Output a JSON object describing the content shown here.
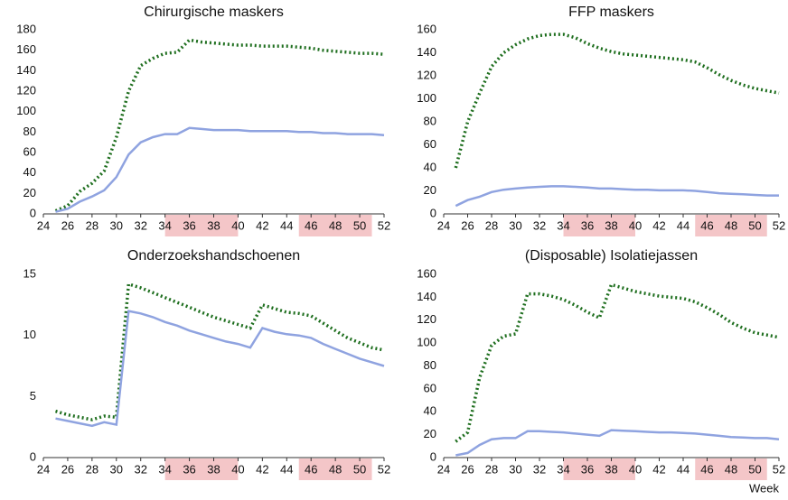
{
  "xlabel": "Week",
  "chart_data": [
    {
      "type": "line",
      "title": "Chirurgische maskers",
      "x": [
        25,
        26,
        27,
        28,
        29,
        30,
        31,
        32,
        33,
        34,
        35,
        36,
        37,
        38,
        39,
        40,
        41,
        42,
        43,
        44,
        45,
        46,
        47,
        48,
        49,
        50,
        51,
        52
      ],
      "xlim": [
        24,
        52
      ],
      "xticks": [
        24,
        26,
        28,
        30,
        32,
        34,
        36,
        38,
        40,
        42,
        44,
        46,
        48,
        50,
        52
      ],
      "ylim": [
        0,
        180
      ],
      "yticks": [
        0,
        20,
        40,
        60,
        80,
        100,
        120,
        140,
        160,
        180
      ],
      "shaded": [
        [
          34,
          40
        ],
        [
          45,
          51
        ]
      ],
      "shade_color": "#f4c6c8",
      "series": [
        {
          "color": "#1e6e1e",
          "style": "dotted",
          "values": [
            3,
            8,
            22,
            30,
            42,
            75,
            120,
            145,
            152,
            157,
            158,
            170,
            168,
            167,
            166,
            165,
            165,
            164,
            164,
            164,
            163,
            162,
            160,
            159,
            158,
            157,
            157,
            156
          ]
        },
        {
          "color": "#8fa3e0",
          "style": "solid",
          "values": [
            2,
            5,
            12,
            17,
            23,
            36,
            58,
            70,
            75,
            78,
            78,
            84,
            83,
            82,
            82,
            82,
            81,
            81,
            81,
            81,
            80,
            80,
            79,
            79,
            78,
            78,
            78,
            77
          ]
        }
      ]
    },
    {
      "type": "line",
      "title": "FFP maskers",
      "x": [
        25,
        26,
        27,
        28,
        29,
        30,
        31,
        32,
        33,
        34,
        35,
        36,
        37,
        38,
        39,
        40,
        41,
        42,
        43,
        44,
        45,
        46,
        47,
        48,
        49,
        50,
        51,
        52
      ],
      "xlim": [
        24,
        52
      ],
      "xticks": [
        24,
        26,
        28,
        30,
        32,
        34,
        36,
        38,
        40,
        42,
        44,
        46,
        48,
        50,
        52
      ],
      "ylim": [
        0,
        160
      ],
      "yticks": [
        0,
        20,
        40,
        60,
        80,
        100,
        120,
        140,
        160
      ],
      "shaded": [
        [
          34,
          40
        ],
        [
          45,
          51
        ]
      ],
      "shade_color": "#f4c6c8",
      "series": [
        {
          "color": "#1e6e1e",
          "style": "dotted",
          "values": [
            40,
            80,
            105,
            128,
            140,
            147,
            152,
            155,
            156,
            156,
            153,
            148,
            144,
            141,
            139,
            138,
            137,
            136,
            135,
            134,
            132,
            127,
            121,
            116,
            112,
            109,
            107,
            105
          ]
        },
        {
          "color": "#8fa3e0",
          "style": "solid",
          "values": [
            7,
            12,
            15,
            19,
            21,
            22,
            23,
            23.5,
            24,
            24,
            23.5,
            23,
            22,
            22,
            21.5,
            21,
            21,
            20.5,
            20.5,
            20.5,
            20,
            19,
            18,
            17.5,
            17,
            16.5,
            16,
            16
          ]
        }
      ]
    },
    {
      "type": "line",
      "title": "Onderzoekshandschoenen",
      "x": [
        25,
        26,
        27,
        28,
        29,
        30,
        31,
        32,
        33,
        34,
        35,
        36,
        37,
        38,
        39,
        40,
        41,
        42,
        43,
        44,
        45,
        46,
        47,
        48,
        49,
        50,
        51,
        52
      ],
      "xlim": [
        24,
        52
      ],
      "xticks": [
        24,
        26,
        28,
        30,
        32,
        34,
        36,
        38,
        40,
        42,
        44,
        46,
        48,
        50,
        52
      ],
      "ylim": [
        0,
        15
      ],
      "yticks": [
        0,
        5,
        10,
        15
      ],
      "shaded": [
        [
          34,
          40
        ],
        [
          45,
          51
        ]
      ],
      "shade_color": "#f4c6c8",
      "series": [
        {
          "color": "#1e6e1e",
          "style": "dotted",
          "values": [
            3.8,
            3.5,
            3.3,
            3.1,
            3.4,
            3.3,
            14.2,
            13.9,
            13.5,
            13.1,
            12.7,
            12.3,
            11.9,
            11.5,
            11.2,
            10.9,
            10.6,
            12.5,
            12.2,
            11.9,
            11.8,
            11.6,
            11.0,
            10.4,
            9.8,
            9.4,
            9.0,
            8.8
          ]
        },
        {
          "color": "#8fa3e0",
          "style": "solid",
          "values": [
            3.2,
            3.0,
            2.8,
            2.6,
            2.9,
            2.7,
            12.0,
            11.8,
            11.5,
            11.1,
            10.8,
            10.4,
            10.1,
            9.8,
            9.5,
            9.3,
            9.0,
            10.6,
            10.3,
            10.1,
            10.0,
            9.8,
            9.3,
            8.9,
            8.5,
            8.1,
            7.8,
            7.5
          ]
        }
      ]
    },
    {
      "type": "line",
      "title": "(Disposable) Isolatiejassen",
      "x": [
        25,
        26,
        27,
        28,
        29,
        30,
        31,
        32,
        33,
        34,
        35,
        36,
        37,
        38,
        39,
        40,
        41,
        42,
        43,
        44,
        45,
        46,
        47,
        48,
        49,
        50,
        51,
        52
      ],
      "xlim": [
        24,
        52
      ],
      "xticks": [
        24,
        26,
        28,
        30,
        32,
        34,
        36,
        38,
        40,
        42,
        44,
        46,
        48,
        50,
        52
      ],
      "ylim": [
        0,
        160
      ],
      "yticks": [
        0,
        20,
        40,
        60,
        80,
        100,
        120,
        140,
        160
      ],
      "shaded": [
        [
          34,
          40
        ],
        [
          45,
          51
        ]
      ],
      "shade_color": "#f4c6c8",
      "series": [
        {
          "color": "#1e6e1e",
          "style": "dotted",
          "values": [
            14,
            22,
            70,
            98,
            106,
            108,
            143,
            143,
            141,
            138,
            133,
            127,
            122,
            151,
            148,
            145,
            143,
            141,
            140,
            139,
            136,
            131,
            125,
            118,
            113,
            109,
            107,
            105
          ]
        },
        {
          "color": "#8fa3e0",
          "style": "solid",
          "values": [
            2,
            4,
            11,
            16,
            17,
            17,
            23,
            23,
            22.5,
            22,
            21,
            20,
            19,
            24,
            23.5,
            23,
            22.5,
            22,
            22,
            21.5,
            21,
            20,
            19,
            18,
            17.5,
            17,
            17,
            16
          ]
        }
      ]
    }
  ]
}
